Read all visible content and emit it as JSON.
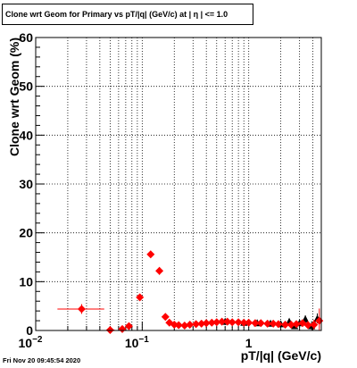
{
  "title": "Clone wrt Geom for Primary vs pT/|q| (GeV/c) at |  η | <= 1.0",
  "timestamp": "Fri Nov 20 09:45:54 2020",
  "colors": {
    "series_reference": "#000000",
    "series_new": "#ff0000",
    "grid": "#000000",
    "frame": "#000000"
  },
  "chart_data": {
    "type": "scatter",
    "title": "Clone wrt Geom for Primary vs pT/|q| (GeV/c) at |  η | <= 1.0",
    "xlabel": "pT/|q| (GeV/c)",
    "ylabel": "Clone wrt Geom (%)",
    "xscale": "log",
    "xlim": [
      0.01,
      4.8
    ],
    "ylim": [
      0,
      60
    ],
    "grid": true,
    "x_tick_labels": [
      "10",
      "1"
    ],
    "x_tick_label_exponents": [
      "−2",
      "−1",
      ""
    ],
    "x_major_ticks": [
      0.01,
      0.1,
      1
    ],
    "y_tick_labels": [
      "0",
      "10",
      "20",
      "30",
      "40",
      "50",
      "60"
    ],
    "y_ticks": [
      0,
      10,
      20,
      30,
      40,
      50,
      60
    ],
    "series": [
      {
        "marker": "diamond",
        "color": "#ff0000",
        "x": [
          0.027,
          0.05,
          0.065,
          0.075,
          0.095,
          0.12,
          0.145,
          0.165,
          0.18,
          0.2,
          0.22,
          0.25,
          0.28,
          0.32,
          0.36,
          0.4,
          0.45,
          0.5,
          0.56,
          0.63,
          0.7,
          0.8,
          0.9,
          1.0,
          1.15,
          1.3,
          1.5,
          1.7,
          1.9,
          2.2,
          2.5,
          2.8,
          3.2,
          3.6,
          4.1,
          4.6
        ],
        "y": [
          4.4,
          0.1,
          0.3,
          0.9,
          6.8,
          15.6,
          12.2,
          2.8,
          1.6,
          1.2,
          1.1,
          1.0,
          1.2,
          1.3,
          1.4,
          1.5,
          1.6,
          1.7,
          1.8,
          1.8,
          1.7,
          1.7,
          1.6,
          1.6,
          1.5,
          1.5,
          1.4,
          1.4,
          1.3,
          1.2,
          1.2,
          1.3,
          1.5,
          1.1,
          1.2,
          2.0
        ],
        "xerr": [
          [
            0.011,
            0.017
          ],
          [
            0.004,
            0.005
          ],
          [
            0.003,
            0.003
          ],
          [
            0.003,
            0.003
          ],
          [
            0.006,
            0.006
          ],
          [
            0.007,
            0.007
          ],
          [
            0.007,
            0.007
          ],
          [
            0.005,
            0.005
          ],
          [
            0.007,
            0.007
          ],
          [
            0.008,
            0.008
          ],
          [
            0.009,
            0.01
          ],
          [
            0.01,
            0.01
          ],
          [
            0.01,
            0.01
          ],
          [
            0.01,
            0.01
          ],
          [
            0.01,
            0.01
          ],
          [
            0.01,
            0.01
          ],
          [
            0.01,
            0.01
          ],
          [
            0.01,
            0.01
          ],
          [
            0.01,
            0.01
          ],
          [
            0.01,
            0.01
          ],
          [
            0.01,
            0.01
          ],
          [
            0.01,
            0.01
          ],
          [
            0.01,
            0.01
          ],
          [
            0.01,
            0.01
          ],
          [
            0.01,
            0.01
          ],
          [
            0.01,
            0.01
          ],
          [
            0.01,
            0.01
          ],
          [
            0.01,
            0.01
          ],
          [
            0.01,
            0.01
          ],
          [
            0.01,
            0.01
          ],
          [
            0.01,
            0.01
          ],
          [
            0.01,
            0.01
          ],
          [
            0.01,
            0.01
          ],
          [
            0.01,
            0.01
          ],
          [
            0.01,
            0.01
          ],
          [
            0.01,
            0.01
          ]
        ],
        "yerr": [
          1.0,
          0.3,
          0.3,
          0.4,
          0.6,
          0.7,
          0.8,
          0.5,
          0.2,
          0.1,
          0.1,
          0.1,
          0.1,
          0.1,
          0.1,
          0.1,
          0.1,
          0.1,
          0.1,
          0.1,
          0.1,
          0.1,
          0.1,
          0.1,
          0.1,
          0.1,
          0.2,
          0.2,
          0.2,
          0.3,
          0.4,
          0.5,
          0.7,
          0.8,
          1.0,
          2.5
        ]
      },
      {
        "marker": "triangle",
        "color": "#000000",
        "x": [
          0.6,
          0.9,
          1.2,
          1.6,
          2.0,
          2.4,
          2.7,
          3.0,
          3.4,
          3.9,
          4.4
        ],
        "y": [
          1.9,
          1.7,
          1.6,
          1.5,
          1.4,
          1.9,
          1.0,
          1.6,
          2.4,
          1.0,
          2.5
        ],
        "yerr": [
          0.1,
          0.1,
          0.1,
          0.2,
          0.3,
          0.4,
          0.5,
          0.6,
          0.7,
          0.9,
          1.0
        ]
      }
    ]
  }
}
